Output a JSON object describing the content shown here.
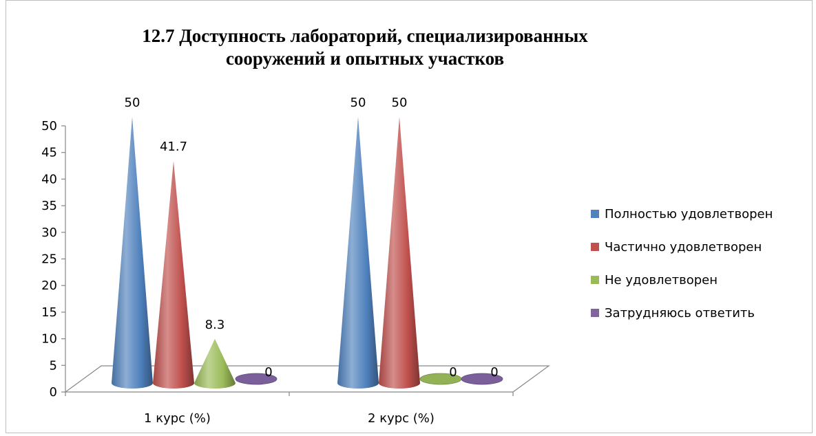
{
  "chart_data": {
    "type": "bar",
    "title_line1": "12.7 Доступность лабораторий, специализированных",
    "title_line2": "сооружений и опытных участков",
    "categories": [
      "1 курс (%)",
      "2 курс (%)"
    ],
    "series": [
      {
        "name": "Полностью удовлетворен",
        "values": [
          50,
          50
        ],
        "color": "#4f81bd"
      },
      {
        "name": "Частично удовлетворен",
        "values": [
          41.7,
          50
        ],
        "color": "#c0504d"
      },
      {
        "name": "Не удовлетворен",
        "values": [
          8.3,
          0
        ],
        "color": "#9bbb59"
      },
      {
        "name": "Затрудняюсь ответить",
        "values": [
          0,
          0
        ],
        "color": "#8064a2"
      }
    ],
    "data_labels": [
      [
        "50",
        "41.7",
        "8.3",
        "0"
      ],
      [
        "50",
        "50",
        "0",
        "0"
      ]
    ],
    "ylim": [
      0,
      50
    ],
    "yticks": [
      "0",
      "5",
      "10",
      "15",
      "20",
      "25",
      "30",
      "35",
      "40",
      "45",
      "50"
    ],
    "legend_position": "right",
    "shape": "cone"
  }
}
